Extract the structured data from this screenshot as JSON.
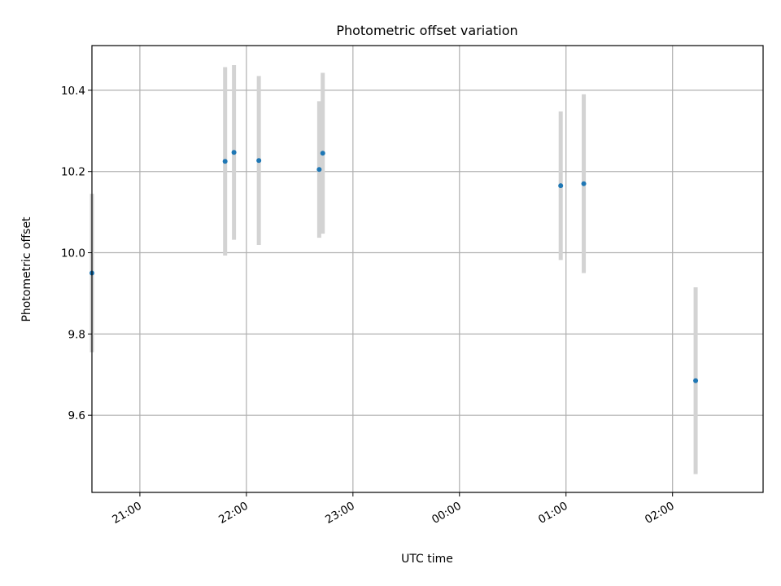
{
  "chart_data": {
    "type": "scatter",
    "title": "Photometric offset variation",
    "xlabel": "UTC time",
    "ylabel": "Photometric offset",
    "x_tick_labels": [
      "21:00",
      "22:00",
      "23:00",
      "00:00",
      "01:00",
      "02:00"
    ],
    "y_tick_labels": [
      "9.6",
      "9.8",
      "10.0",
      "10.2",
      "10.4"
    ],
    "xlim": [
      "20:33",
      "02:51"
    ],
    "ylim": [
      9.41,
      10.51
    ],
    "grid": true,
    "points": [
      {
        "x": "20:33",
        "y": 9.95,
        "err": 0.195
      },
      {
        "x": "21:48",
        "y": 10.225,
        "err": 0.232
      },
      {
        "x": "21:53",
        "y": 10.247,
        "err": 0.215
      },
      {
        "x": "22:07",
        "y": 10.227,
        "err": 0.208
      },
      {
        "x": "22:41",
        "y": 10.205,
        "err": 0.168
      },
      {
        "x": "22:43",
        "y": 10.245,
        "err": 0.198
      },
      {
        "x": "00:57",
        "y": 10.165,
        "err": 0.183
      },
      {
        "x": "01:10",
        "y": 10.17,
        "err": 0.22
      },
      {
        "x": "02:13",
        "y": 9.685,
        "err": 0.23
      }
    ],
    "colors": {
      "marker": "#1f77b4",
      "errorbar": "#d3d3d3",
      "grid": "#b0b0b0",
      "axes": "#000000"
    }
  }
}
